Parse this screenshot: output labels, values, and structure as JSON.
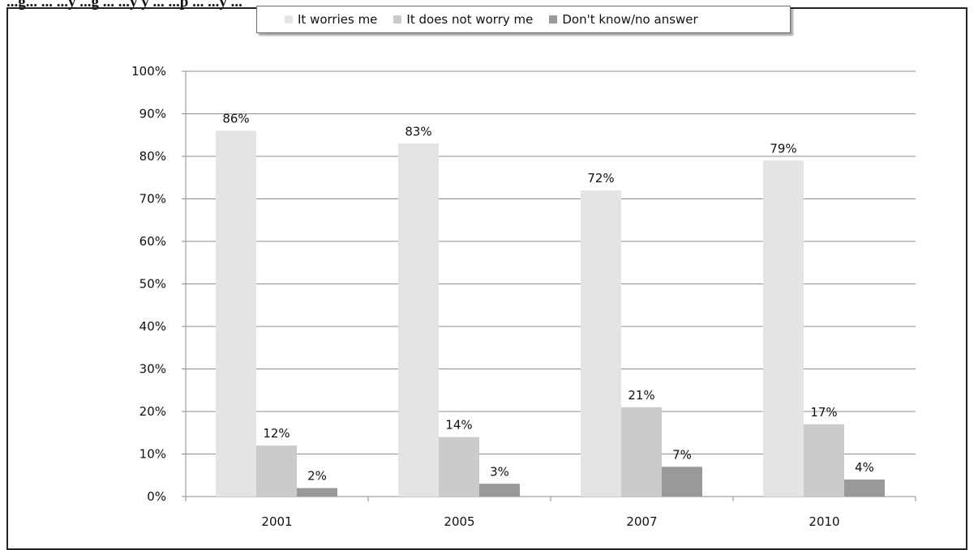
{
  "page": {
    "title_partial": "...g... ... ...y ...g ... ...y y ... ...p ... ...y ..."
  },
  "chart_data": {
    "type": "bar",
    "categories": [
      "2001",
      "2005",
      "2007",
      "2010"
    ],
    "series": [
      {
        "name": "It worries me",
        "color": "#e4e4e4",
        "values": [
          86,
          83,
          72,
          79
        ],
        "labels": [
          "86%",
          "83%",
          "72%",
          "79%"
        ]
      },
      {
        "name": "It does not worry me",
        "color": "#cbcbcb",
        "values": [
          12,
          14,
          21,
          17
        ],
        "labels": [
          "12%",
          "14%",
          "21%",
          "17%"
        ]
      },
      {
        "name": "Don't know/no answer",
        "color": "#999999",
        "values": [
          2,
          3,
          7,
          4
        ],
        "labels": [
          "2%",
          "3%",
          "7%",
          "4%"
        ]
      }
    ],
    "yticks": [
      "0%",
      "10%",
      "20%",
      "30%",
      "40%",
      "50%",
      "60%",
      "70%",
      "80%",
      "90%",
      "100%"
    ],
    "ylim": [
      0,
      100
    ],
    "grid": true,
    "legend_position": "top"
  }
}
